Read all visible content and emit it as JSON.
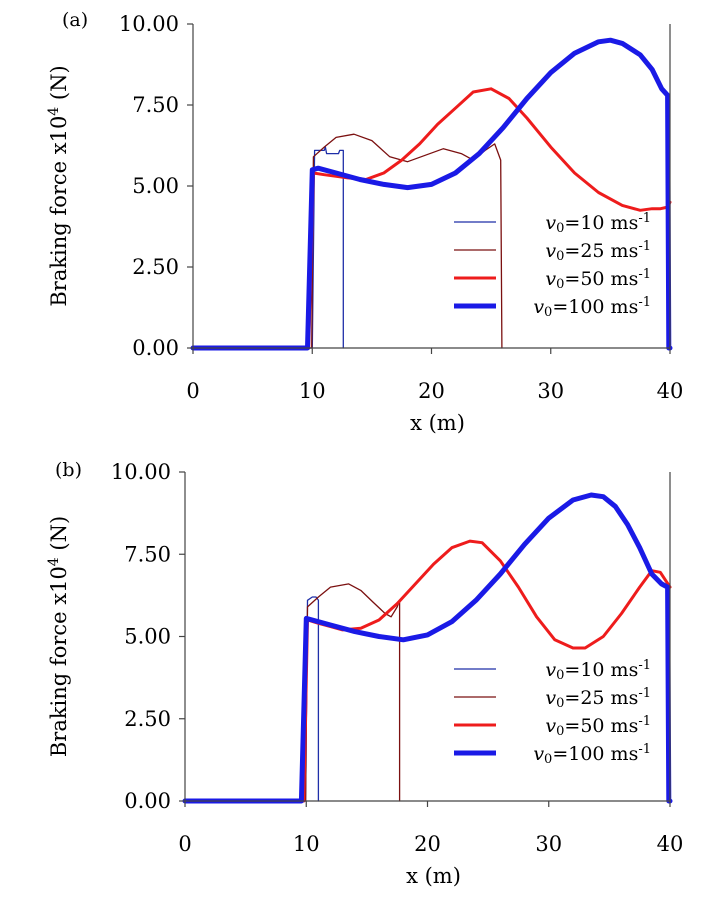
{
  "chart_data": [
    {
      "type": "line",
      "panel_label": "(a)",
      "xlabel": "x (m)",
      "ylabel": "Braking force x10",
      "ylabel_sup": "4",
      "ylabel_unit": " (N)",
      "xlim": [
        0,
        40
      ],
      "ylim": [
        0,
        10
      ],
      "xticks": [
        "0",
        "10",
        "20",
        "30",
        "40"
      ],
      "yticks": [
        "0.00",
        "2.50",
        "5.00",
        "7.50",
        "10.00"
      ],
      "grid": false,
      "legend_position": "lower-right",
      "series": [
        {
          "name": "v0=10 ms-1",
          "label_var": "v",
          "label_sub": "0",
          "label_rest": "=10 ms",
          "label_sup": "-1",
          "color": "#1f2fa8",
          "width": "thin",
          "x": [
            0,
            9.5,
            10.0,
            10.2,
            11.0,
            11.1,
            11.2,
            12.2,
            12.3,
            12.4,
            12.6,
            12.6
          ],
          "y": [
            0,
            0,
            0,
            6.1,
            6.1,
            6.2,
            6.0,
            6.0,
            6.1,
            6.1,
            6.1,
            0
          ]
        },
        {
          "name": "v0=25 ms-1",
          "label_var": "v",
          "label_sub": "0",
          "label_rest": "=25 ms",
          "label_sup": "-1",
          "color": "#7b1010",
          "width": "thin",
          "x": [
            0,
            9.5,
            9.95,
            10.1,
            11.0,
            12.0,
            13.5,
            15.0,
            16.5,
            18.0,
            19.5,
            21.0,
            22.5,
            23.5,
            24.5,
            25.3,
            25.8,
            25.9
          ],
          "y": [
            0,
            0,
            0,
            5.9,
            6.2,
            6.5,
            6.6,
            6.4,
            5.9,
            5.75,
            5.95,
            6.15,
            6.0,
            5.8,
            6.1,
            6.3,
            5.8,
            0
          ]
        },
        {
          "name": "v0=50 ms-1",
          "label_var": "v",
          "label_sub": "0",
          "label_rest": "=50 ms",
          "label_sup": "-1",
          "color": "#ee1c1c",
          "width": "medium",
          "x": [
            0,
            9.4,
            9.7,
            10.1,
            11.0,
            12.0,
            13.0,
            14.5,
            16.0,
            17.5,
            19.0,
            20.5,
            22.0,
            23.5,
            25.0,
            26.5,
            28.0,
            30.0,
            32.0,
            34.0,
            36.0,
            37.5,
            38.5,
            39.2,
            39.8,
            40.0
          ],
          "y": [
            0,
            0,
            0,
            5.4,
            5.35,
            5.3,
            5.25,
            5.2,
            5.4,
            5.8,
            6.3,
            6.9,
            7.4,
            7.9,
            8.0,
            7.7,
            7.1,
            6.2,
            5.4,
            4.8,
            4.4,
            4.25,
            4.3,
            4.3,
            4.35,
            4.5
          ]
        },
        {
          "name": "v0=100 ms-1",
          "label_var": "v",
          "label_sub": "0",
          "label_rest": "=100 ms",
          "label_sup": "-1",
          "color": "#1a1ae6",
          "width": "thick",
          "x": [
            0,
            9.4,
            9.6,
            10.0,
            10.5,
            12.0,
            14.0,
            16.0,
            18.0,
            20.0,
            22.0,
            24.0,
            26.0,
            28.0,
            30.0,
            32.0,
            34.0,
            35.0,
            36.0,
            37.5,
            38.5,
            39.3,
            39.8,
            39.9,
            40.0
          ],
          "y": [
            0,
            0,
            0,
            5.5,
            5.55,
            5.4,
            5.2,
            5.05,
            4.95,
            5.05,
            5.4,
            6.0,
            6.8,
            7.7,
            8.5,
            9.1,
            9.45,
            9.5,
            9.4,
            9.05,
            8.6,
            8.0,
            7.8,
            0,
            0
          ]
        }
      ]
    },
    {
      "type": "line",
      "panel_label": "(b)",
      "xlabel": "x (m)",
      "ylabel": "Braking force x10",
      "ylabel_sup": "4",
      "ylabel_unit": " (N)",
      "xlim": [
        0,
        40
      ],
      "ylim": [
        0,
        10
      ],
      "xticks": [
        "0",
        "10",
        "20",
        "30",
        "40"
      ],
      "yticks": [
        "0.00",
        "2.50",
        "5.00",
        "7.50",
        "10.00"
      ],
      "grid": false,
      "legend_position": "lower-right",
      "series": [
        {
          "name": "v0=10 ms-1",
          "label_var": "v",
          "label_sub": "0",
          "label_rest": "=10 ms",
          "label_sup": "-1",
          "color": "#1f2fa8",
          "width": "thin",
          "x": [
            0,
            9.5,
            9.95,
            10.1,
            10.5,
            10.6,
            10.8,
            11.0,
            11.0
          ],
          "y": [
            0,
            0,
            0,
            6.1,
            6.2,
            6.2,
            6.2,
            6.1,
            0
          ]
        },
        {
          "name": "v0=25 ms-1",
          "label_var": "v",
          "label_sub": "0",
          "label_rest": "=25 ms",
          "label_sup": "-1",
          "color": "#7b1010",
          "width": "thin",
          "x": [
            0,
            9.5,
            9.95,
            10.1,
            11.0,
            12.0,
            13.5,
            14.5,
            15.5,
            16.5,
            17.0,
            17.5,
            17.7,
            17.7
          ],
          "y": [
            0,
            0,
            0,
            5.9,
            6.2,
            6.5,
            6.6,
            6.4,
            6.05,
            5.7,
            5.6,
            5.9,
            6.1,
            0
          ]
        },
        {
          "name": "v0=50 ms-1",
          "label_var": "v",
          "label_sub": "0",
          "label_rest": "=50 ms",
          "label_sup": "-1",
          "color": "#ee1c1c",
          "width": "medium",
          "x": [
            0,
            9.4,
            9.8,
            10.1,
            11.0,
            12.0,
            13.0,
            14.5,
            16.0,
            17.5,
            19.0,
            20.5,
            22.0,
            23.5,
            24.5,
            26.0,
            27.5,
            29.0,
            30.5,
            32.0,
            33.0,
            34.5,
            36.0,
            37.5,
            38.5,
            39.2,
            40.0
          ],
          "y": [
            0,
            0,
            0,
            5.5,
            5.4,
            5.3,
            5.2,
            5.25,
            5.5,
            6.0,
            6.6,
            7.2,
            7.7,
            7.9,
            7.85,
            7.3,
            6.5,
            5.6,
            4.9,
            4.65,
            4.65,
            5.0,
            5.7,
            6.5,
            7.0,
            6.95,
            6.5
          ]
        },
        {
          "name": "v0=100 ms-1",
          "label_var": "v",
          "label_sub": "0",
          "label_rest": "=100 ms",
          "label_sup": "-1",
          "color": "#1a1ae6",
          "width": "thick",
          "x": [
            0,
            9.4,
            9.6,
            10.0,
            10.5,
            12.0,
            14.0,
            16.0,
            18.0,
            20.0,
            22.0,
            24.0,
            26.0,
            28.0,
            30.0,
            32.0,
            33.5,
            34.5,
            35.5,
            36.5,
            37.5,
            38.5,
            39.3,
            39.8,
            39.9,
            40.0
          ],
          "y": [
            0,
            0,
            0,
            5.55,
            5.5,
            5.35,
            5.15,
            5.0,
            4.9,
            5.05,
            5.45,
            6.1,
            6.9,
            7.8,
            8.6,
            9.15,
            9.3,
            9.25,
            8.95,
            8.4,
            7.7,
            6.9,
            6.6,
            6.5,
            0,
            0
          ]
        }
      ]
    }
  ]
}
